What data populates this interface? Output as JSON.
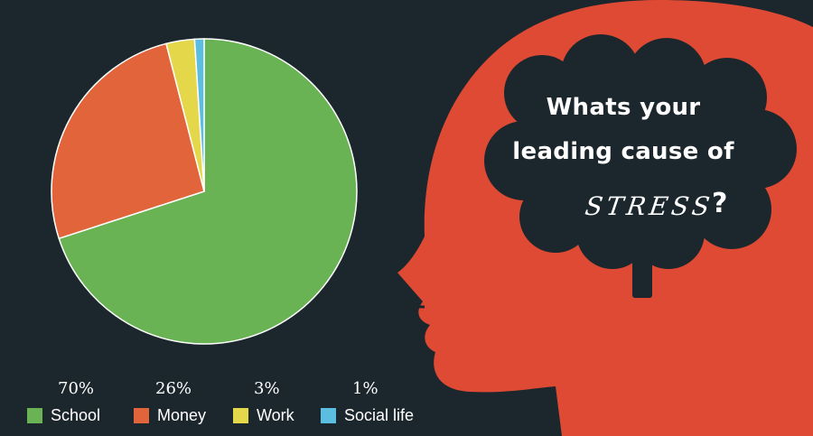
{
  "infographic": {
    "question_line1": "Whats your",
    "question_line2": "leading cause of",
    "stress_word": "STRESS",
    "question_mark": "?"
  },
  "colors": {
    "background": "#1c272d",
    "head": "#de4a33"
  },
  "chart_data": {
    "type": "pie",
    "categories": [
      "School",
      "Money",
      "Work",
      "Social life"
    ],
    "values": [
      70,
      26,
      3,
      1
    ],
    "value_labels": [
      "70%",
      "26%",
      "3%",
      "1%"
    ],
    "colors": [
      "#6ab354",
      "#e2643a",
      "#e4d84a",
      "#5bbde0"
    ],
    "start": "12 o'clock, clockwise",
    "legend_position": "bottom"
  }
}
